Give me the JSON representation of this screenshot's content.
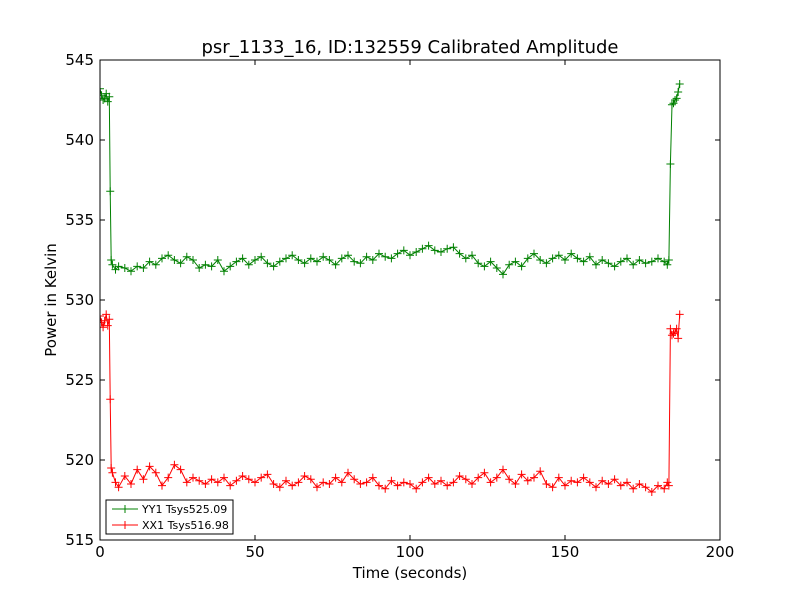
{
  "chart_data": {
    "type": "line",
    "title": "psr_1133_16, ID:132559 Calibrated Amplitude",
    "xlabel": "Time (seconds)",
    "ylabel": "Power in Kelvin",
    "xlim": [
      0,
      200
    ],
    "ylim": [
      515,
      545
    ],
    "xticks": [
      0,
      50,
      100,
      150,
      200
    ],
    "yticks": [
      515,
      520,
      525,
      530,
      535,
      540,
      545
    ],
    "grid": false,
    "legend_position": "bottom-left",
    "marker": "plus",
    "series": [
      {
        "name": "YY1 Tsys525.09",
        "color": "#008000",
        "x": [
          0,
          0.5,
          1,
          1.5,
          2,
          2.5,
          3,
          3.3,
          3.6,
          4,
          5,
          6,
          8,
          10,
          12,
          14,
          16,
          18,
          20,
          22,
          24,
          26,
          28,
          30,
          32,
          34,
          36,
          38,
          40,
          42,
          44,
          46,
          48,
          50,
          52,
          54,
          56,
          58,
          60,
          62,
          64,
          66,
          68,
          70,
          72,
          74,
          76,
          78,
          80,
          82,
          84,
          86,
          88,
          90,
          92,
          94,
          96,
          98,
          100,
          102,
          104,
          106,
          108,
          110,
          112,
          114,
          116,
          118,
          120,
          122,
          124,
          126,
          128,
          130,
          132,
          134,
          136,
          138,
          140,
          142,
          144,
          146,
          148,
          150,
          152,
          154,
          156,
          158,
          160,
          162,
          164,
          166,
          168,
          170,
          172,
          174,
          176,
          178,
          180,
          182,
          183,
          183.5,
          184,
          184.5,
          185,
          185.5,
          186,
          186.5,
          187
        ],
        "y": [
          543.2,
          542.8,
          542.5,
          542.6,
          542.9,
          542.4,
          542.7,
          536.8,
          532.5,
          532.2,
          531.9,
          532.1,
          532.0,
          531.8,
          532.1,
          532.0,
          532.4,
          532.2,
          532.6,
          532.8,
          532.5,
          532.3,
          532.7,
          532.5,
          532.0,
          532.2,
          532.1,
          532.5,
          531.8,
          532.1,
          532.4,
          532.6,
          532.2,
          532.5,
          532.7,
          532.3,
          532.1,
          532.4,
          532.6,
          532.8,
          532.5,
          532.3,
          532.6,
          532.4,
          532.7,
          532.5,
          532.2,
          532.6,
          532.8,
          532.4,
          532.3,
          532.7,
          532.5,
          532.9,
          532.7,
          532.6,
          532.9,
          533.1,
          532.8,
          533.0,
          533.2,
          533.4,
          533.1,
          533.0,
          533.2,
          533.3,
          532.9,
          532.6,
          532.8,
          532.3,
          532.1,
          532.4,
          532.0,
          531.6,
          532.2,
          532.4,
          532.1,
          532.6,
          532.9,
          532.5,
          532.3,
          532.6,
          532.8,
          532.5,
          532.9,
          532.6,
          532.4,
          532.7,
          532.2,
          532.5,
          532.3,
          532.1,
          532.4,
          532.6,
          532.2,
          532.5,
          532.3,
          532.4,
          532.6,
          532.4,
          532.2,
          532.5,
          538.5,
          542.2,
          542.3,
          542.5,
          542.6,
          543.0,
          543.5
        ]
      },
      {
        "name": "XX1 Tsys516.98",
        "color": "#ff0000",
        "x": [
          0,
          0.5,
          1,
          1.5,
          2,
          2.5,
          3,
          3.3,
          3.6,
          4,
          5,
          6,
          8,
          10,
          12,
          14,
          16,
          18,
          20,
          22,
          24,
          26,
          28,
          30,
          32,
          34,
          36,
          38,
          40,
          42,
          44,
          46,
          48,
          50,
          52,
          54,
          56,
          58,
          60,
          62,
          64,
          66,
          68,
          70,
          72,
          74,
          76,
          78,
          80,
          82,
          84,
          86,
          88,
          90,
          92,
          94,
          96,
          98,
          100,
          102,
          104,
          106,
          108,
          110,
          112,
          114,
          116,
          118,
          120,
          122,
          124,
          126,
          128,
          130,
          132,
          134,
          136,
          138,
          140,
          142,
          144,
          146,
          148,
          150,
          152,
          154,
          156,
          158,
          160,
          162,
          164,
          166,
          168,
          170,
          172,
          174,
          176,
          178,
          180,
          182,
          183,
          183.5,
          184,
          184.5,
          185,
          185.5,
          186,
          186.5,
          187
        ],
        "y": [
          529.0,
          528.6,
          528.3,
          528.7,
          529.1,
          528.4,
          528.8,
          523.8,
          519.5,
          519.2,
          518.6,
          518.3,
          519.0,
          518.5,
          519.4,
          518.8,
          519.6,
          519.2,
          518.4,
          518.9,
          519.7,
          519.4,
          518.6,
          518.9,
          518.7,
          518.5,
          518.8,
          518.6,
          518.9,
          518.4,
          518.7,
          519.0,
          518.8,
          518.6,
          518.9,
          519.1,
          518.5,
          518.3,
          518.7,
          518.4,
          518.6,
          519.0,
          518.8,
          518.3,
          518.6,
          518.5,
          518.9,
          518.6,
          519.2,
          518.8,
          518.5,
          518.6,
          518.9,
          518.4,
          518.2,
          518.7,
          518.4,
          518.6,
          518.5,
          518.2,
          518.6,
          518.9,
          518.5,
          518.7,
          518.4,
          518.6,
          519.0,
          518.8,
          518.5,
          518.9,
          519.2,
          518.6,
          518.9,
          519.4,
          518.8,
          518.5,
          519.1,
          518.7,
          518.9,
          519.3,
          518.5,
          518.3,
          518.9,
          518.4,
          518.7,
          518.6,
          518.9,
          518.6,
          518.3,
          518.7,
          518.5,
          518.8,
          518.4,
          518.6,
          518.2,
          518.5,
          518.3,
          518.0,
          518.4,
          518.2,
          518.6,
          518.4,
          528.2,
          527.8,
          527.9,
          528.0,
          528.2,
          527.6,
          529.1
        ]
      }
    ]
  }
}
